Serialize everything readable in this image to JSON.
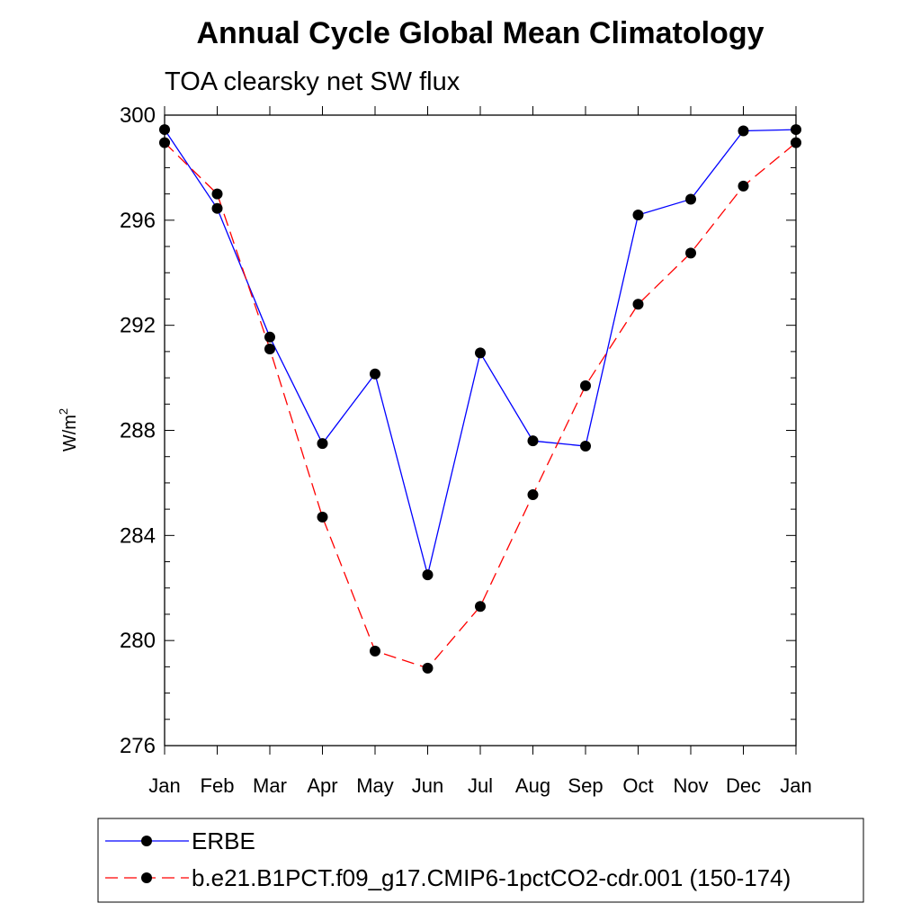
{
  "chart_data": {
    "type": "line",
    "title": "Annual Cycle Global Mean Climatology",
    "subtitle": "TOA clearsky net SW flux",
    "ylabel": "W/m",
    "ylabel_sup": "2",
    "ylim": [
      276,
      300
    ],
    "yticks": [
      276,
      280,
      284,
      288,
      292,
      296,
      300
    ],
    "categories": [
      "Jan",
      "Feb",
      "Mar",
      "Apr",
      "May",
      "Jun",
      "Jul",
      "Aug",
      "Sep",
      "Oct",
      "Nov",
      "Dec",
      "Jan"
    ],
    "grid": false,
    "legend_position": "bottom",
    "series": [
      {
        "name": "ERBE",
        "color": "#0000ff",
        "line_style": "solid",
        "marker": "filled-circle",
        "values": [
          299.45,
          296.45,
          291.55,
          287.5,
          290.15,
          282.5,
          290.95,
          287.6,
          287.4,
          296.2,
          296.8,
          299.4,
          299.45
        ]
      },
      {
        "name": "b.e21.B1PCT.f09_g17.CMIP6-1pctCO2-cdr.001 (150-174)",
        "color": "#ff0000",
        "line_style": "dashed",
        "marker": "filled-circle",
        "values": [
          298.95,
          297.0,
          291.1,
          284.7,
          279.6,
          278.95,
          281.3,
          285.55,
          289.7,
          292.8,
          294.75,
          297.3,
          298.95
        ]
      }
    ]
  }
}
